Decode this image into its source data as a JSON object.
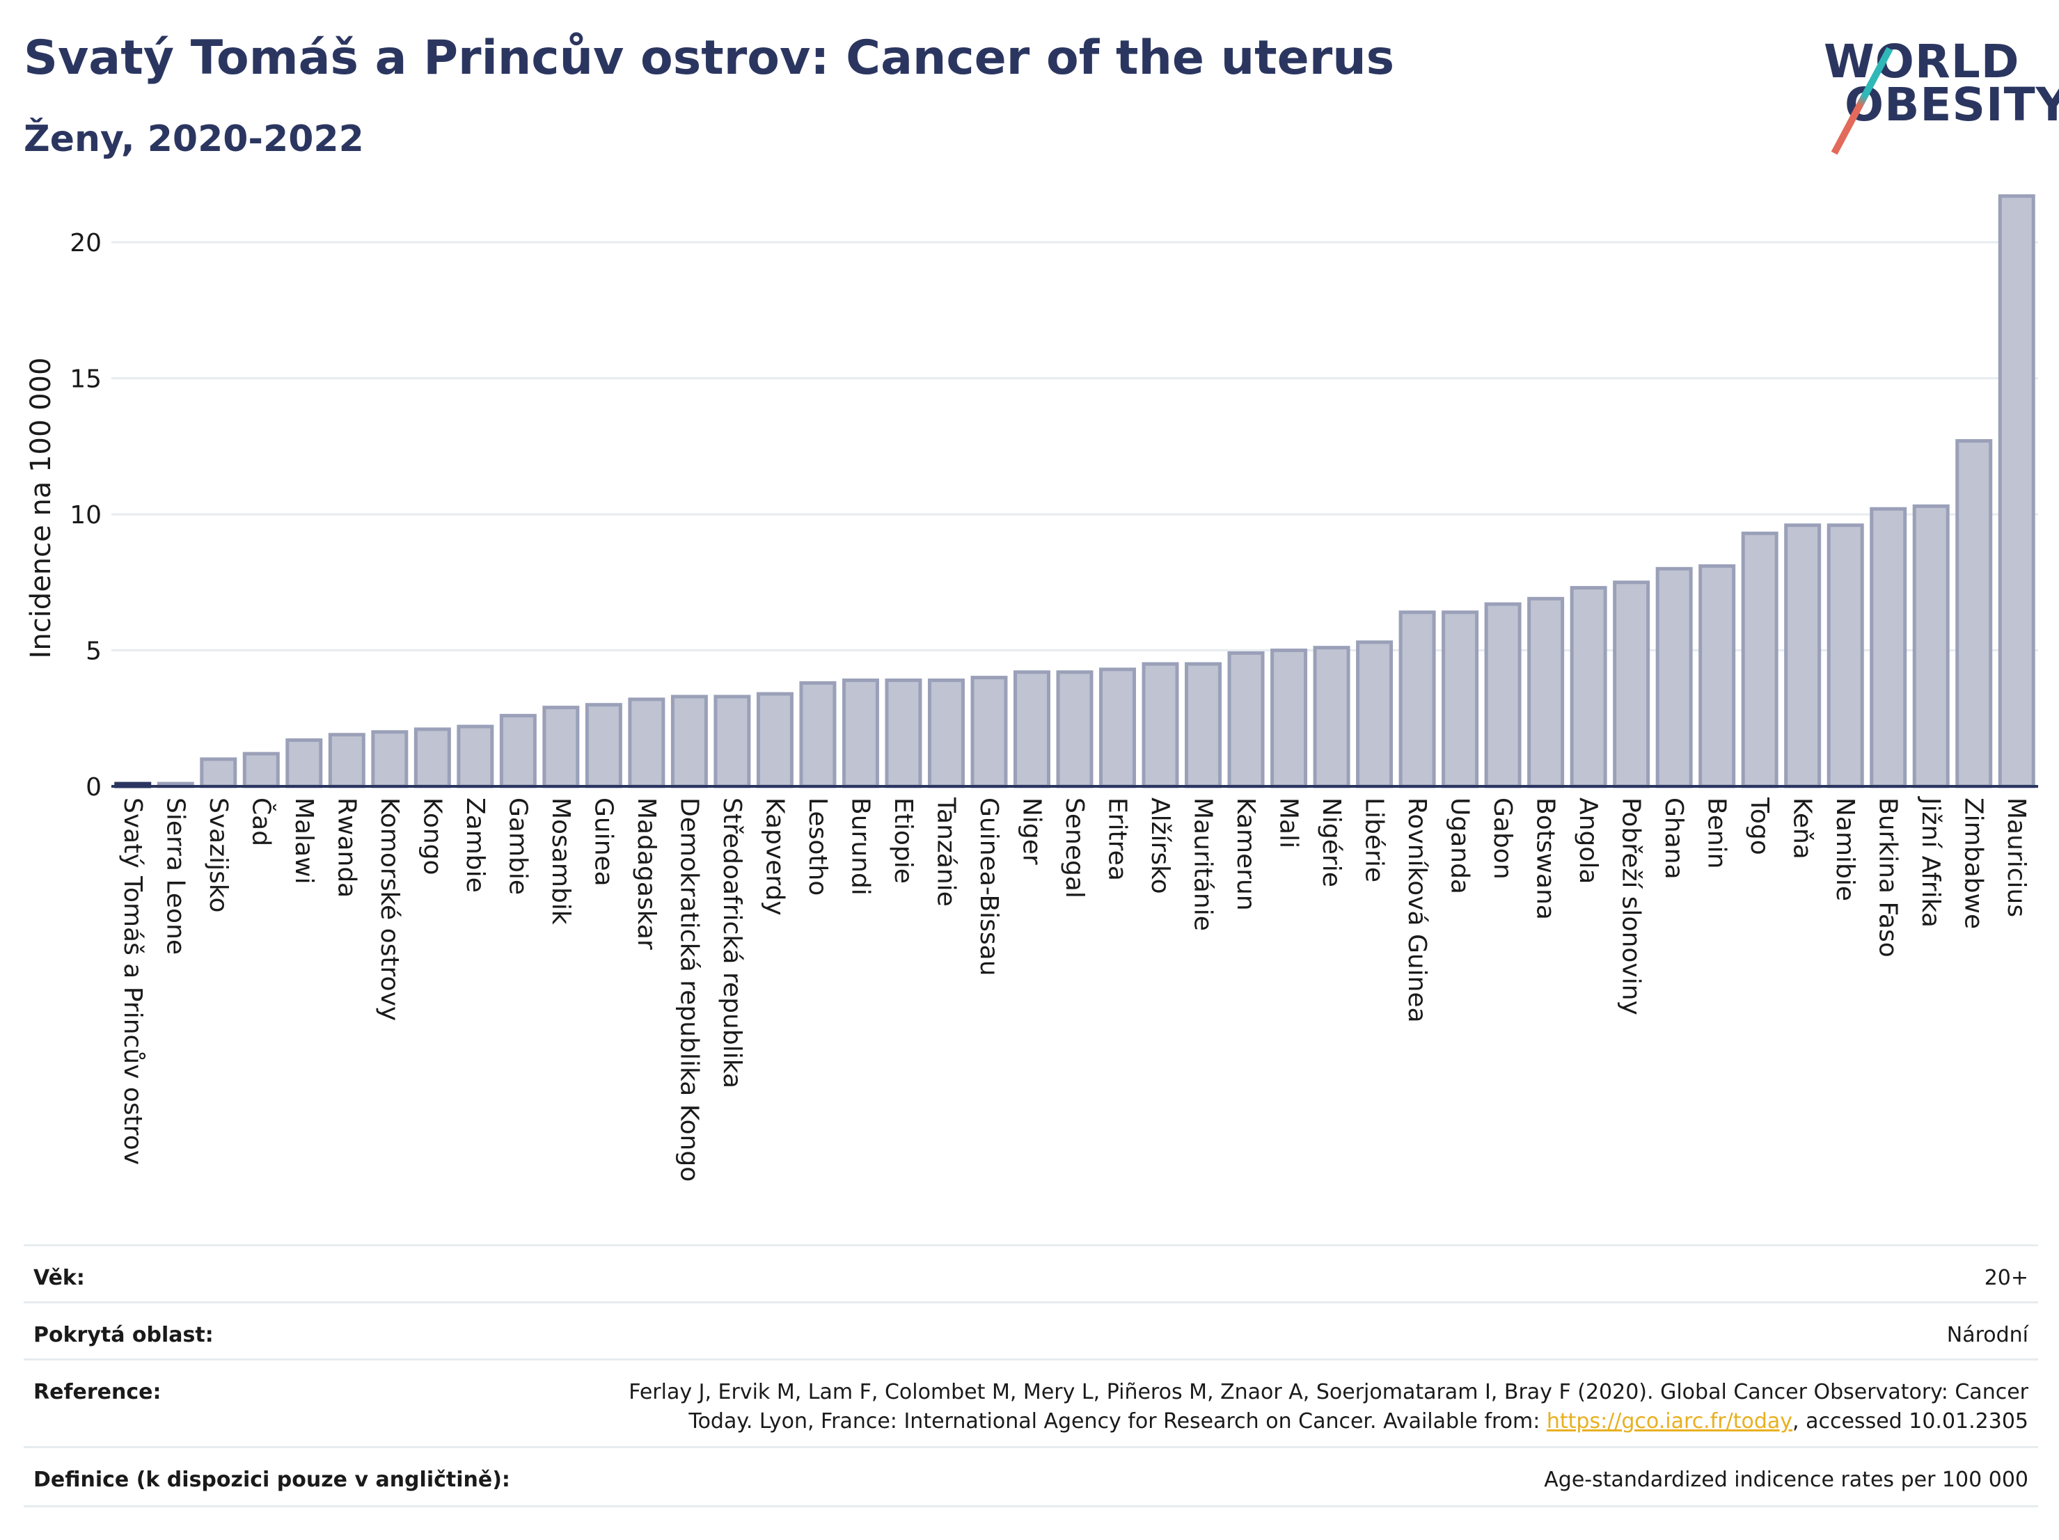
{
  "header": {
    "title": "Svatý Tomáš a Princův ostrov: Cancer of the uterus",
    "subtitle": "Ženy, 2020-2022"
  },
  "logo": {
    "line1": "WORLD",
    "line2": "OBESITY"
  },
  "colors": {
    "bar_fill": "#bfc3d2",
    "bar_stroke": "#9aa0b8",
    "highlight_fill": "#2b3660",
    "text": "#2b3660",
    "link": "#e8b020",
    "grid": "#e6ecef"
  },
  "chart_data": {
    "type": "bar",
    "ylabel": "Incidence na 100 000",
    "xlabel": "",
    "ylim": [
      0,
      22
    ],
    "yticks": [
      0,
      5,
      10,
      15,
      20
    ],
    "grid": true,
    "highlight": "Svatý Tomáš a Princův ostrov",
    "categories": [
      "Svatý Tomáš a Princův ostrov",
      "Sierra Leone",
      "Svazijsko",
      "Čad",
      "Malawi",
      "Rwanda",
      "Komorské ostrovy",
      "Kongo",
      "Zambie",
      "Gambie",
      "Mosambik",
      "Guinea",
      "Madagaskar",
      "Demokratická republika Kongo",
      "Středoafrická republika",
      "Kapverdy",
      "Lesotho",
      "Burundi",
      "Etiopie",
      "Tanzánie",
      "Guinea-Bissau",
      "Niger",
      "Senegal",
      "Eritrea",
      "Alžírsko",
      "Mauritánie",
      "Kamerun",
      "Mali",
      "Nigérie",
      "Libérie",
      "Rovníková Guinea",
      "Uganda",
      "Gabon",
      "Botswana",
      "Angola",
      "Pobřeží slonoviny",
      "Ghana",
      "Benin",
      "Togo",
      "Keňa",
      "Namibie",
      "Burkina Faso",
      "Jižní Afrika",
      "Zimbabwe",
      "Mauricius"
    ],
    "values": [
      0.1,
      0.1,
      1.0,
      1.2,
      1.7,
      1.9,
      2.0,
      2.1,
      2.2,
      2.6,
      2.9,
      3.0,
      3.2,
      3.3,
      3.3,
      3.4,
      3.8,
      3.9,
      3.9,
      3.9,
      4.0,
      4.2,
      4.2,
      4.3,
      4.5,
      4.5,
      4.9,
      5.0,
      5.1,
      5.3,
      6.4,
      6.4,
      6.7,
      6.9,
      7.3,
      7.5,
      8.0,
      8.1,
      9.3,
      9.6,
      9.6,
      10.2,
      10.3,
      12.7,
      21.7
    ]
  },
  "meta": {
    "age_label": "Věk:",
    "age_value": "20+",
    "area_label": "Pokrytá oblast:",
    "area_value": "Národní",
    "reference_label": "Reference:",
    "reference_line1": "Ferlay J, Ervik M, Lam F, Colombet M, Mery L, Piñeros M, Znaor A, Soerjomataram I, Bray F (2020). Global Cancer Observatory: Cancer",
    "reference_line2_pre": "Today. Lyon, France: International Agency for Research on Cancer. Available from: ",
    "reference_link": "https://gco.iarc.fr/today",
    "reference_line2_post": ", accessed 10.01.2305",
    "definition_label": "Definice (k dispozici pouze v angličtině):",
    "definition_value": "Age-standardized indicence rates per 100 000"
  }
}
